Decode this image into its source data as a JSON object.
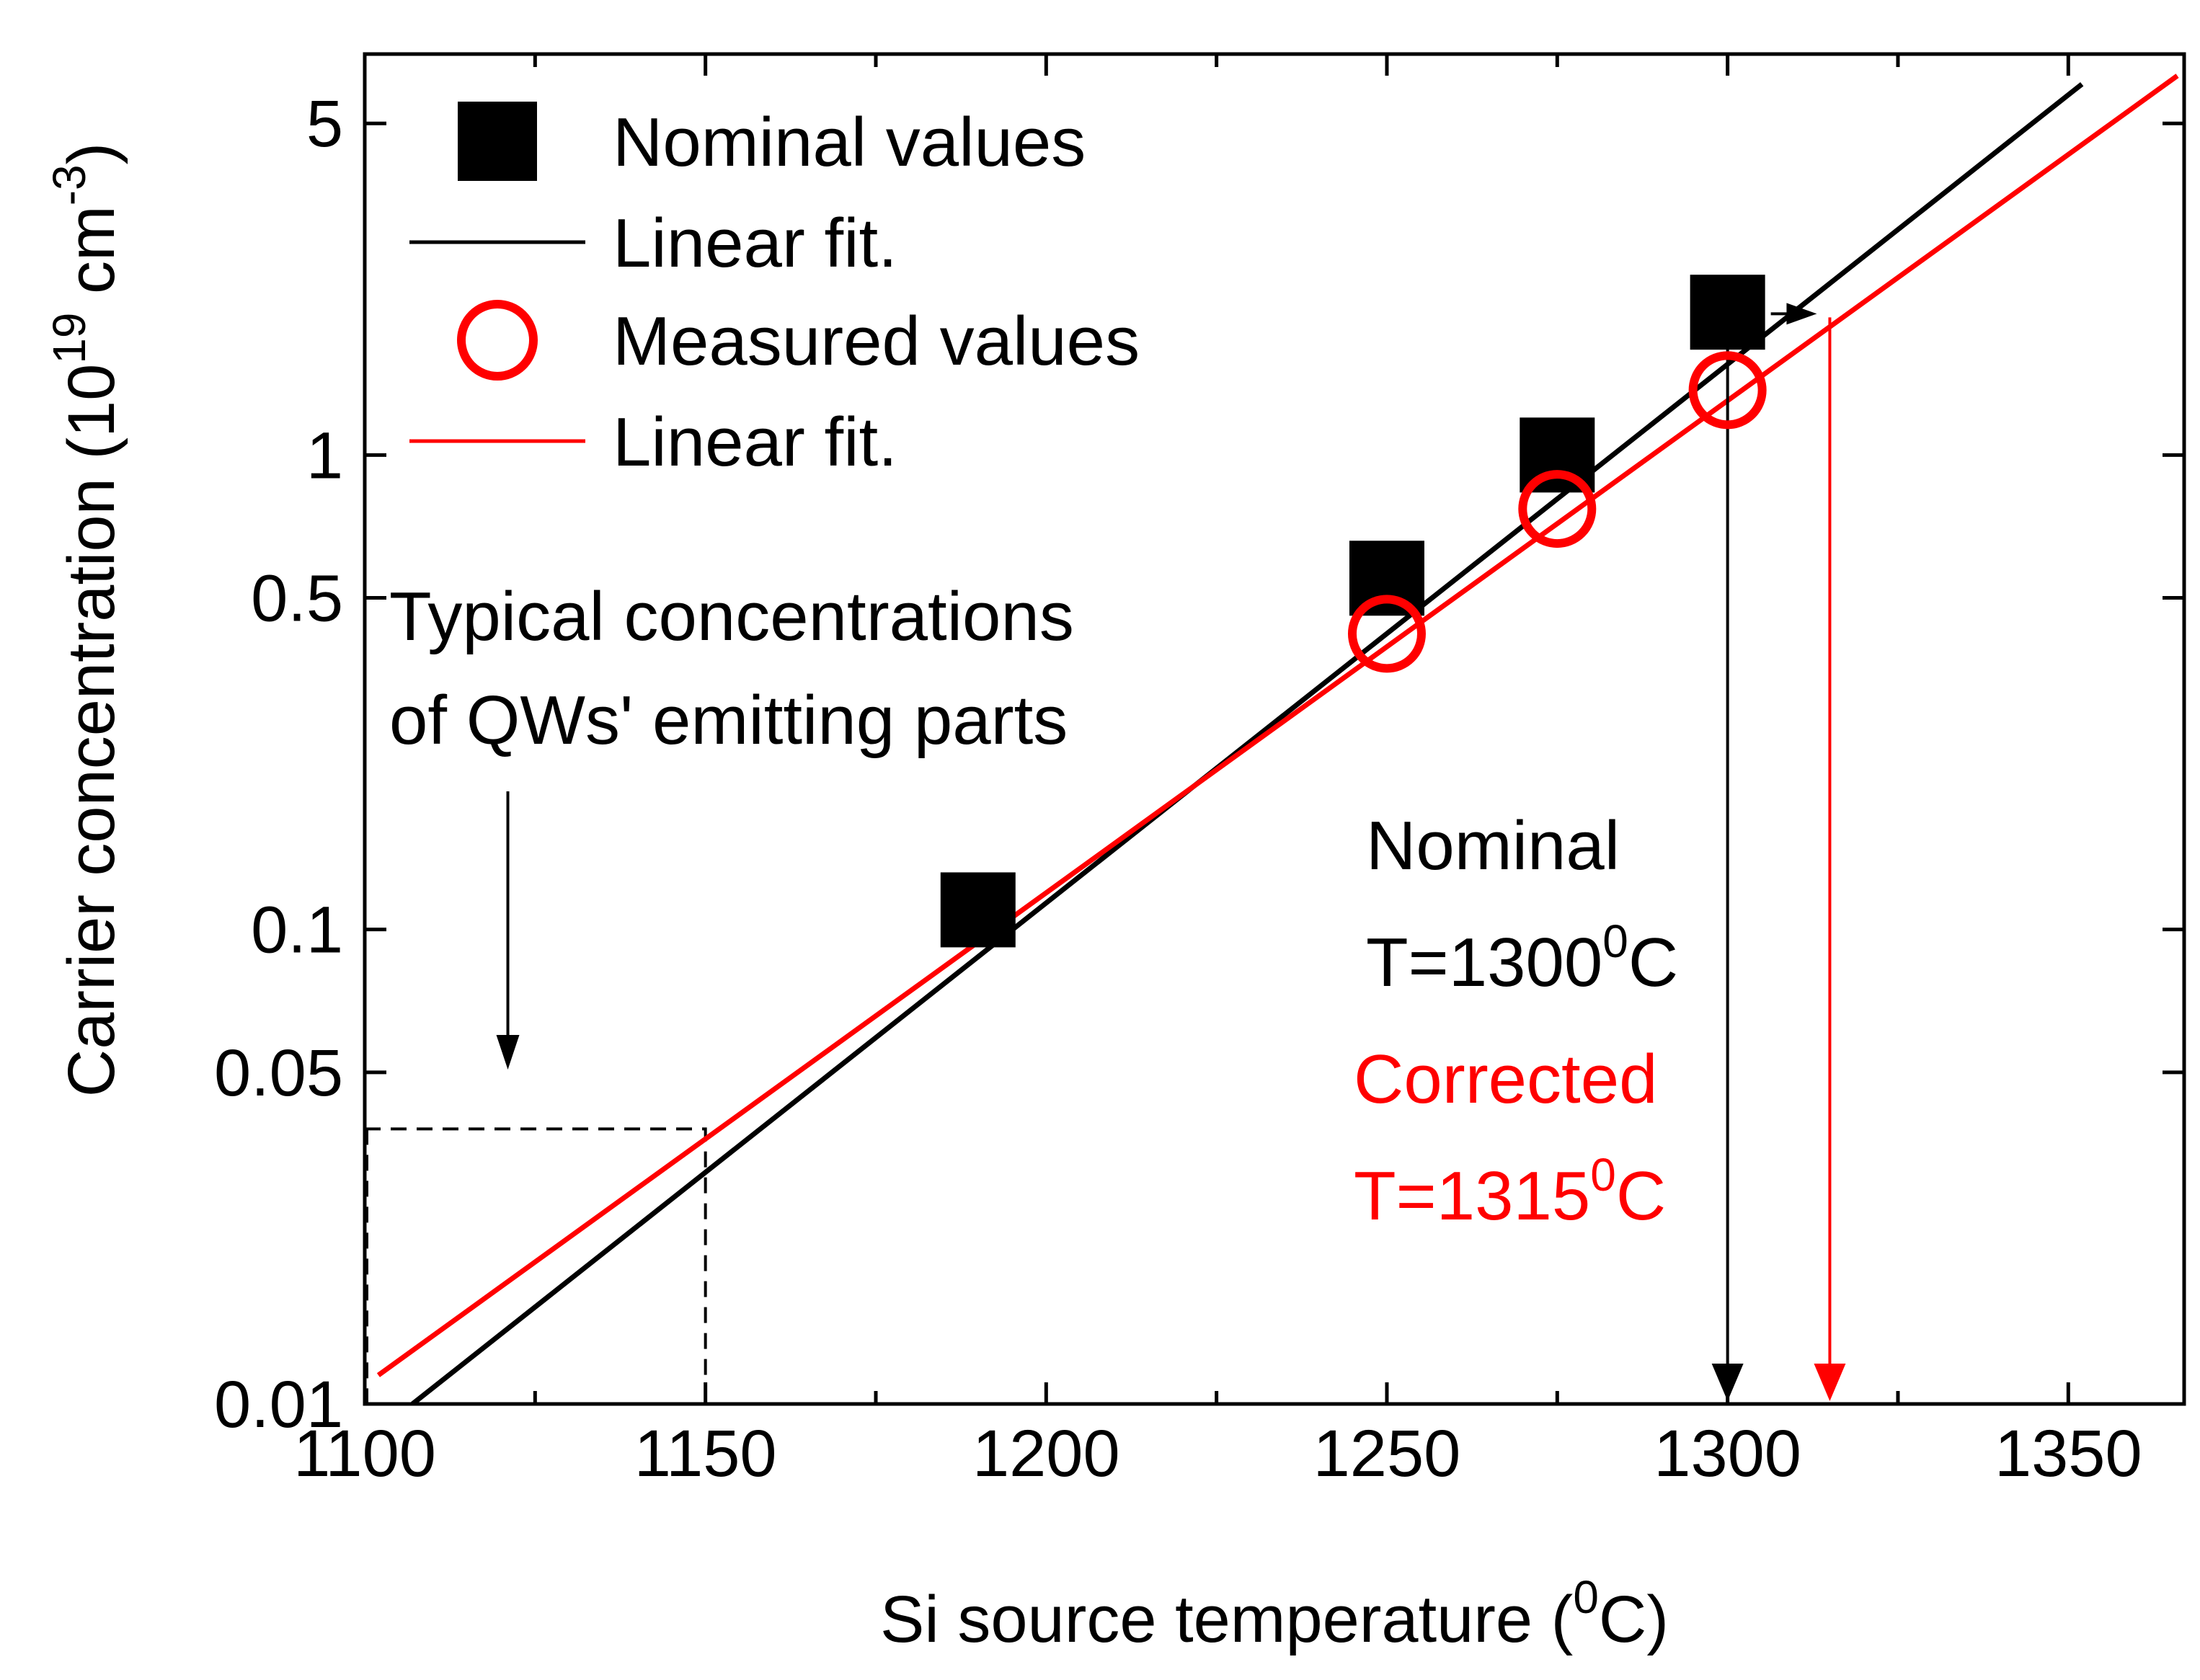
{
  "chart_data": {
    "type": "scatter",
    "xlabel": "Si source temperature (",
    "xlabel_sup": "0",
    "xlabel_end": "C)",
    "ylabel": "Carrier concentration (10",
    "ylabel_sup1": "19",
    "ylabel_mid": " cm",
    "ylabel_sup2": "-3",
    "ylabel_end": ")",
    "xlim": [
      1100,
      1367
    ],
    "ylim": [
      0.01,
      7
    ],
    "yscale": "log",
    "x_ticks": [
      1100,
      1150,
      1200,
      1250,
      1300,
      1350
    ],
    "x_tick_labels": [
      "1100",
      "1150",
      "1200",
      "1250",
      "1300",
      "1350"
    ],
    "y_ticks": [
      0.01,
      0.05,
      0.1,
      0.5,
      1,
      5
    ],
    "y_tick_labels": [
      "0.01",
      "0.05",
      "0.1",
      "0.5",
      "1",
      "5"
    ],
    "series": [
      {
        "name": "Nominal values",
        "marker": "square",
        "color": "#000000",
        "x": [
          1190,
          1250,
          1275,
          1300
        ],
        "y": [
          0.11,
          0.55,
          1.0,
          2.0
        ]
      },
      {
        "name": "Linear fit.",
        "kind": "line",
        "color": "#000000",
        "x": [
          1107,
          1352
        ],
        "y": [
          0.01,
          6.05
        ]
      },
      {
        "name": "Measured values",
        "marker": "circle",
        "color": "#ff0000",
        "x": [
          1250,
          1275,
          1300
        ],
        "y": [
          0.42,
          0.77,
          1.37
        ]
      },
      {
        "name": "Linear fit.",
        "kind": "line",
        "color": "#ff0000",
        "x": [
          1102,
          1366
        ],
        "y": [
          0.0115,
          6.3
        ]
      }
    ],
    "legend": {
      "position": "top-left",
      "entries": [
        "Nominal values",
        "Linear fit.",
        "Measured values",
        "Linear fit."
      ]
    },
    "annotations": {
      "typical_line1": "Typical concentrations",
      "typical_line2": "of QWs' emitting parts",
      "typical_x": 1150,
      "typical_y": 0.038,
      "typical_arrow_x": 1121,
      "nominal_label": "Nominal",
      "nominal_temp_prefix": "T=1300",
      "nominal_temp_sup": "0",
      "nominal_temp_suffix": "C",
      "nominal_x": 1300,
      "corrected_label": "Corrected",
      "corrected_temp_prefix": "T=1315",
      "corrected_temp_sup": "0",
      "corrected_temp_suffix": "C",
      "corrected_x": 1315,
      "intersect_y": 1.95
    }
  }
}
